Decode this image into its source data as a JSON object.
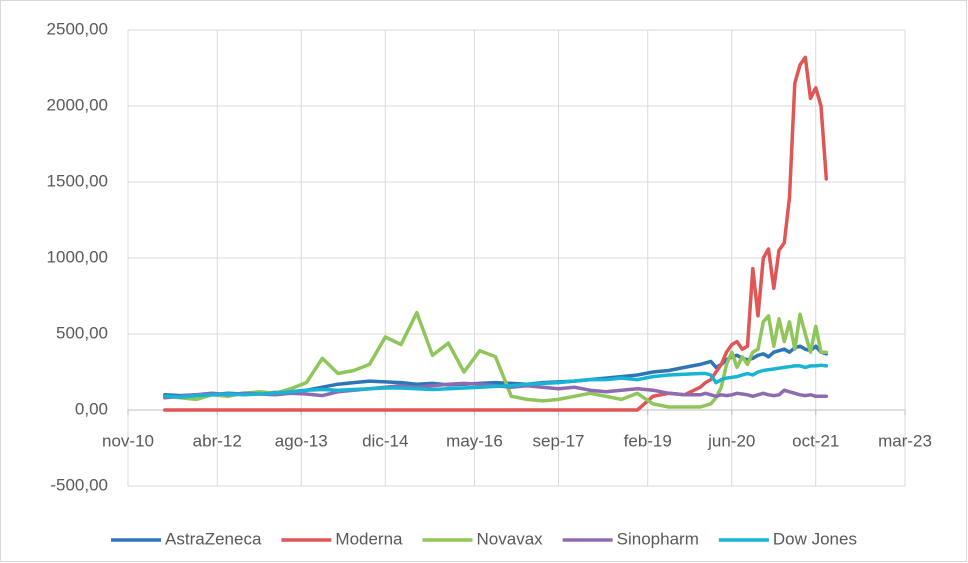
{
  "chart_data": {
    "type": "line",
    "x": [
      "jun-11",
      "sep-11",
      "dic-11",
      "mar-12",
      "jun-12",
      "sep-12",
      "dic-12",
      "mar-13",
      "jun-13",
      "sep-13",
      "dic-13",
      "mar-14",
      "jun-14",
      "sep-14",
      "dic-14",
      "mar-15",
      "jun-15",
      "sep-15",
      "dic-15",
      "mar-16",
      "jun-16",
      "sep-16",
      "dic-16",
      "mar-17",
      "jun-17",
      "sep-17",
      "dic-17",
      "mar-18",
      "jun-18",
      "sep-18",
      "dic-18",
      "mar-19",
      "jun-19",
      "sep-19",
      "dic-19",
      "ene-20",
      "feb-20",
      "mar-20",
      "abr-20",
      "may-20",
      "jun-20",
      "jul-20",
      "ago-20",
      "sep-20",
      "oct-20",
      "nov-20",
      "dic-20",
      "ene-21",
      "feb-21",
      "mar-21",
      "abr-21",
      "may-21",
      "jun-21",
      "jul-21",
      "ago-21",
      "sep-21",
      "oct-21",
      "nov-21",
      "dic-21"
    ],
    "series": [
      {
        "name": "AstraZeneca",
        "color": "#2e75b6",
        "values": [
          100,
          95,
          100,
          100,
          110,
          105,
          110,
          115,
          120,
          130,
          150,
          170,
          180,
          190,
          185,
          180,
          170,
          175,
          165,
          170,
          175,
          180,
          175,
          170,
          180,
          185,
          190,
          200,
          210,
          220,
          230,
          250,
          260,
          280,
          300,
          310,
          320,
          280,
          300,
          330,
          350,
          360,
          340,
          330,
          340,
          360,
          370,
          350,
          380,
          390,
          400,
          380,
          410,
          420,
          400,
          390,
          420,
          380,
          370
        ]
      },
      {
        "name": "Moderna",
        "color": "#e05555",
        "values": [
          0,
          0,
          0,
          0,
          0,
          0,
          0,
          0,
          0,
          0,
          0,
          0,
          0,
          0,
          0,
          0,
          0,
          0,
          0,
          0,
          0,
          0,
          0,
          0,
          0,
          0,
          0,
          0,
          0,
          0,
          0,
          90,
          110,
          100,
          150,
          180,
          200,
          250,
          300,
          380,
          430,
          450,
          400,
          420,
          930,
          620,
          1000,
          1060,
          800,
          1050,
          1100,
          1400,
          2150,
          2270,
          2320,
          2050,
          2120,
          2000,
          1520
        ]
      },
      {
        "name": "Novavax",
        "color": "#8fc55a",
        "values": [
          90,
          80,
          70,
          100,
          90,
          110,
          120,
          110,
          140,
          180,
          340,
          240,
          260,
          300,
          480,
          430,
          640,
          360,
          440,
          250,
          390,
          350,
          90,
          70,
          60,
          70,
          90,
          110,
          90,
          70,
          110,
          40,
          20,
          20,
          20,
          30,
          40,
          80,
          150,
          300,
          380,
          280,
          350,
          300,
          380,
          400,
          580,
          620,
          420,
          600,
          450,
          580,
          400,
          630,
          500,
          380,
          550,
          380,
          380
        ]
      },
      {
        "name": "Sinopharm",
        "color": "#8e6bb0",
        "values": [
          80,
          90,
          100,
          110,
          100,
          110,
          105,
          100,
          110,
          105,
          95,
          120,
          130,
          140,
          150,
          160,
          150,
          160,
          170,
          175,
          170,
          160,
          150,
          160,
          150,
          140,
          150,
          130,
          120,
          130,
          140,
          130,
          110,
          100,
          100,
          110,
          100,
          90,
          100,
          95,
          100,
          110,
          105,
          100,
          90,
          100,
          110,
          100,
          95,
          100,
          130,
          120,
          110,
          100,
          95,
          100,
          90,
          90,
          90
        ]
      },
      {
        "name": "Dow Jones",
        "color": "#17b5d3",
        "values": [
          90,
          85,
          95,
          100,
          105,
          100,
          105,
          110,
          120,
          130,
          135,
          130,
          135,
          140,
          145,
          145,
          140,
          135,
          140,
          145,
          150,
          155,
          160,
          170,
          175,
          180,
          190,
          200,
          200,
          210,
          200,
          220,
          230,
          235,
          240,
          240,
          230,
          180,
          200,
          210,
          215,
          220,
          230,
          240,
          230,
          250,
          260,
          265,
          270,
          275,
          280,
          285,
          290,
          290,
          280,
          290,
          290,
          295,
          290
        ]
      }
    ],
    "xlim": [
      "nov-10",
      "mar-23"
    ],
    "xticks": [
      "nov-10",
      "abr-12",
      "ago-13",
      "dic-14",
      "may-16",
      "sep-17",
      "feb-19",
      "jun-20",
      "oct-21",
      "mar-23"
    ],
    "ylim": [
      -500,
      2500
    ],
    "yticks": [
      {
        "value": -500,
        "label": "-500,00"
      },
      {
        "value": 0,
        "label": "0,00"
      },
      {
        "value": 500,
        "label": "500,00"
      },
      {
        "value": 1000,
        "label": "1000,00"
      },
      {
        "value": 1500,
        "label": "1500,00"
      },
      {
        "value": 2000,
        "label": "2000,00"
      },
      {
        "value": 2500,
        "label": "2500,00"
      }
    ],
    "grid": true,
    "legend": "bottom"
  }
}
